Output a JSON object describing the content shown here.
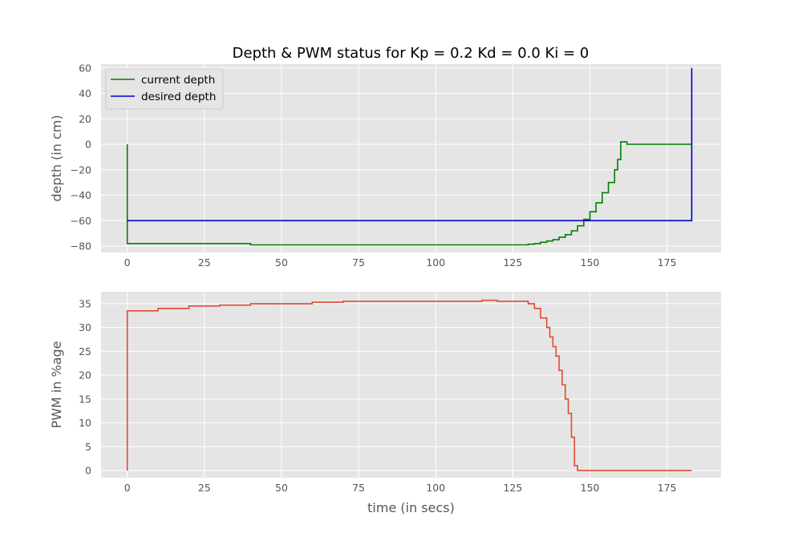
{
  "chart_data": [
    {
      "type": "line",
      "title": "Depth & PWM status for Kp = 0.2 Kd = 0.0 Ki = 0",
      "xlabel": "",
      "ylabel": "depth (in cm)",
      "xlim": [
        -8.5,
        192.5
      ],
      "ylim": [
        -85,
        63
      ],
      "xticks": [
        0,
        25,
        50,
        75,
        100,
        125,
        150,
        175
      ],
      "yticks": [
        -80,
        -60,
        -40,
        -20,
        0,
        20,
        40,
        60
      ],
      "grid": true,
      "legend": "top-left",
      "series": [
        {
          "name": "current depth",
          "color": "#008000",
          "x": [
            0,
            0,
            5,
            10,
            20,
            30,
            40,
            50,
            60,
            70,
            80,
            90,
            100,
            110,
            120,
            125,
            128,
            130,
            132,
            134,
            136,
            138,
            140,
            142,
            144,
            146,
            148,
            150,
            152,
            154,
            156,
            158,
            159,
            160,
            162,
            164,
            166,
            168,
            170,
            172,
            175,
            178,
            180,
            183
          ],
          "values": [
            0,
            -78,
            -78,
            -78,
            -78,
            -78,
            -79,
            -79,
            -79,
            -79,
            -79,
            -79,
            -79,
            -79,
            -79,
            -79,
            -79,
            -78.5,
            -78,
            -77,
            -76,
            -75,
            -73,
            -71,
            -68,
            -64,
            -59,
            -53,
            -46,
            -38,
            -30,
            -20,
            -12,
            2,
            0,
            0,
            0,
            0,
            0,
            0,
            0,
            0,
            0,
            0
          ]
        },
        {
          "name": "desired depth",
          "color": "#0000cc",
          "x": [
            0,
            183,
            183
          ],
          "values": [
            -60,
            -60,
            60
          ]
        }
      ]
    },
    {
      "type": "line",
      "title": "",
      "xlabel": "time (in secs)",
      "ylabel": "PWM in %age",
      "xlim": [
        -8.5,
        192.5
      ],
      "ylim": [
        -1.5,
        37.5
      ],
      "xticks": [
        0,
        25,
        50,
        75,
        100,
        125,
        150,
        175
      ],
      "yticks": [
        0,
        5,
        10,
        15,
        20,
        25,
        30,
        35
      ],
      "grid": true,
      "series": [
        {
          "color": "#e24a33",
          "x": [
            0,
            0,
            3,
            10,
            20,
            30,
            40,
            50,
            60,
            70,
            80,
            90,
            100,
            110,
            115,
            120,
            125,
            130,
            132,
            134,
            136,
            137,
            138,
            139,
            140,
            141,
            142,
            143,
            144,
            145,
            146,
            147,
            150,
            160,
            170,
            183
          ],
          "values": [
            0,
            33.5,
            33.5,
            34,
            34.5,
            34.7,
            35,
            35,
            35.3,
            35.5,
            35.5,
            35.5,
            35.5,
            35.5,
            35.7,
            35.5,
            35.5,
            35,
            34,
            32,
            30,
            28,
            26,
            24,
            21,
            18,
            15,
            12,
            7,
            1,
            0,
            0,
            0,
            0,
            0,
            0
          ]
        }
      ]
    }
  ]
}
